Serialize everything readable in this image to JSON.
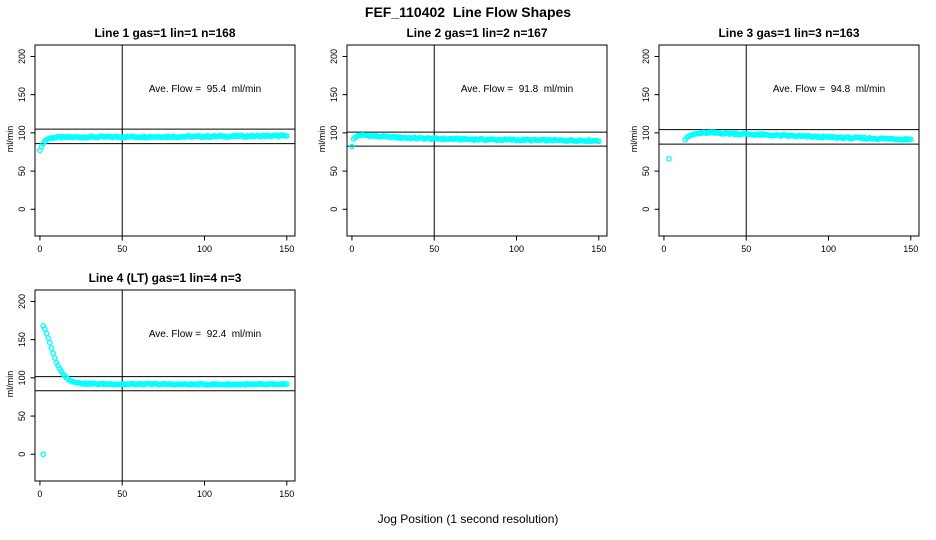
{
  "figure": {
    "title": "FEF_110402  Line Flow Shapes",
    "xlabel": "Jog Position (1 second resolution)",
    "background": "#ffffff",
    "layout": "2x3 grid, 4 panels used",
    "accent_color": "#00FFFF"
  },
  "chart_data": [
    {
      "type": "scatter",
      "title": "Line 1 gas=1 lin=1 n=168",
      "n": 168,
      "annotation": "Ave. Flow =  95.4  ml/min",
      "avg_flow_ml_min": 95.4,
      "ylabel": "ml/min",
      "xticks": [
        0,
        50,
        100,
        150
      ],
      "yticks": [
        0,
        50,
        100,
        150,
        200
      ],
      "xlim": [
        0,
        150
      ],
      "ylim": [
        0,
        200
      ],
      "marker": "open-circle",
      "marker_color": "#00FFFF",
      "ref_line_upper": 104.9,
      "ref_line_lower": 85.9,
      "ref_line_vertical_x": 50,
      "outlier_point": [
        0,
        77
      ],
      "point_step_x": 1,
      "jitter": 1.1,
      "jitter_start_x": 4,
      "profile_points": [
        [
          1,
          82
        ],
        [
          2,
          86
        ],
        [
          3,
          89
        ],
        [
          4,
          91
        ],
        [
          5,
          92.3
        ],
        [
          6,
          93
        ],
        [
          8,
          93.6
        ],
        [
          10,
          93.9
        ],
        [
          15,
          94.2
        ],
        [
          20,
          94.3
        ],
        [
          30,
          94.5
        ],
        [
          50,
          94.7
        ],
        [
          70,
          94.9
        ],
        [
          90,
          95.1
        ],
        [
          110,
          95.4
        ],
        [
          130,
          95.7
        ],
        [
          150,
          96
        ]
      ]
    },
    {
      "type": "scatter",
      "title": "Line 2 gas=1 lin=2 n=167",
      "n": 167,
      "annotation": "Ave. Flow =  91.8  ml/min",
      "avg_flow_ml_min": 91.8,
      "ylabel": "ml/min",
      "xticks": [
        0,
        50,
        100,
        150
      ],
      "yticks": [
        0,
        50,
        100,
        150,
        200
      ],
      "xlim": [
        0,
        150
      ],
      "ylim": [
        0,
        200
      ],
      "marker": "open-circle",
      "marker_color": "#00FFFF",
      "ref_line_upper": 101.0,
      "ref_line_lower": 82.6,
      "ref_line_vertical_x": 50,
      "outlier_point": [
        0,
        82
      ],
      "point_step_x": 1,
      "jitter": 1.0,
      "jitter_start_x": 4,
      "profile_points": [
        [
          1,
          92
        ],
        [
          2,
          94
        ],
        [
          3,
          95.5
        ],
        [
          4,
          96.4
        ],
        [
          5,
          96.8
        ],
        [
          6,
          97
        ],
        [
          8,
          96.8
        ],
        [
          10,
          96.4
        ],
        [
          15,
          95.6
        ],
        [
          20,
          94.9
        ],
        [
          30,
          93.8
        ],
        [
          40,
          93
        ],
        [
          50,
          92.4
        ],
        [
          70,
          91.6
        ],
        [
          90,
          91
        ],
        [
          110,
          90.5
        ],
        [
          130,
          90.1
        ],
        [
          150,
          89.8
        ]
      ]
    },
    {
      "type": "scatter",
      "title": "Line 3 gas=1 lin=3 n=163",
      "n": 163,
      "annotation": "Ave. Flow =  94.8  ml/min",
      "avg_flow_ml_min": 94.8,
      "ylabel": "ml/min",
      "xticks": [
        0,
        50,
        100,
        150
      ],
      "yticks": [
        0,
        50,
        100,
        150,
        200
      ],
      "xlim": [
        0,
        150
      ],
      "ylim": [
        0,
        200
      ],
      "marker": "open-circle",
      "marker_color": "#00FFFF",
      "ref_line_upper": 104.3,
      "ref_line_lower": 85.3,
      "ref_line_vertical_x": 50,
      "outlier_point": [
        3,
        66
      ],
      "point_step_x": 1,
      "jitter": 1.1,
      "jitter_start_x": 16,
      "profile_points": [
        [
          13,
          91
        ],
        [
          14,
          94
        ],
        [
          15,
          95.5
        ],
        [
          16,
          96.5
        ],
        [
          18,
          98
        ],
        [
          20,
          98.8
        ],
        [
          23,
          99.5
        ],
        [
          26,
          100
        ],
        [
          30,
          100
        ],
        [
          35,
          99.6
        ],
        [
          40,
          99.2
        ],
        [
          50,
          98.3
        ],
        [
          60,
          97.4
        ],
        [
          70,
          96.6
        ],
        [
          80,
          95.8
        ],
        [
          90,
          95
        ],
        [
          100,
          94.3
        ],
        [
          110,
          93.6
        ],
        [
          120,
          93
        ],
        [
          130,
          92.5
        ],
        [
          140,
          92
        ],
        [
          150,
          91.6
        ]
      ]
    },
    {
      "type": "scatter",
      "title": "Line 4 (LT) gas=1 lin=4 n=3",
      "n": 3,
      "annotation": "Ave. Flow =  92.4  ml/min",
      "avg_flow_ml_min": 92.4,
      "ylabel": "ml/min",
      "xticks": [
        0,
        50,
        100,
        150
      ],
      "yticks": [
        0,
        50,
        100,
        150,
        200
      ],
      "xlim": [
        0,
        150
      ],
      "ylim": [
        0,
        200
      ],
      "marker": "open-circle",
      "marker_color": "#00FFFF",
      "ref_line_upper": 101.6,
      "ref_line_lower": 83.2,
      "ref_line_vertical_x": 50,
      "outlier_point": [
        2,
        0
      ],
      "point_step_x": 1,
      "jitter": 0.8,
      "jitter_start_x": 20,
      "profile_points": [
        [
          2,
          168
        ],
        [
          3,
          164
        ],
        [
          4,
          158
        ],
        [
          5,
          152
        ],
        [
          6,
          146
        ],
        [
          7,
          139
        ],
        [
          8,
          132
        ],
        [
          9,
          126
        ],
        [
          10,
          120
        ],
        [
          12,
          112
        ],
        [
          14,
          105
        ],
        [
          16,
          100
        ],
        [
          18,
          97
        ],
        [
          20,
          95
        ],
        [
          22,
          93.8
        ],
        [
          25,
          92.8
        ],
        [
          30,
          92.2
        ],
        [
          40,
          91.9
        ],
        [
          60,
          91.7
        ],
        [
          100,
          91.5
        ],
        [
          150,
          91.4
        ]
      ]
    }
  ]
}
